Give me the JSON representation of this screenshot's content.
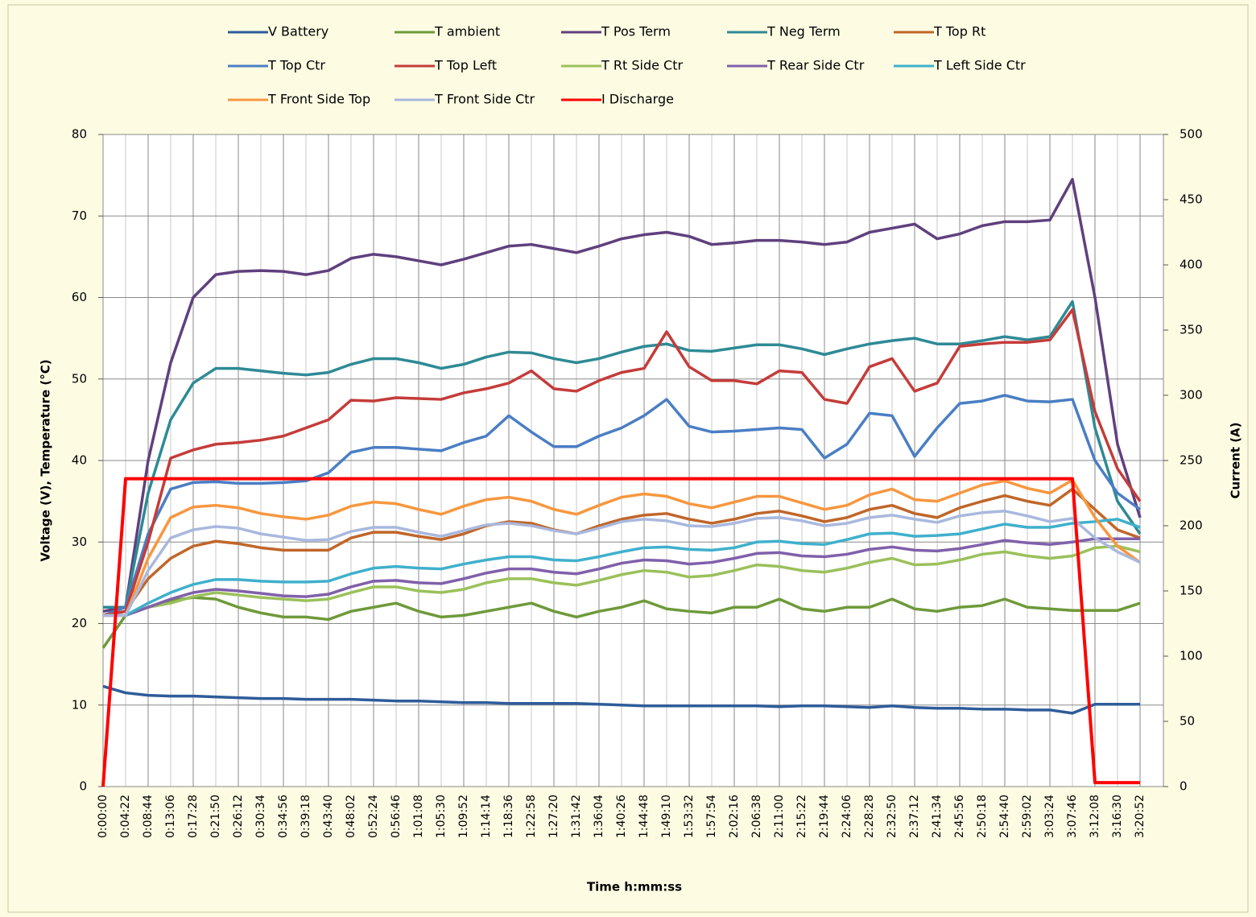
{
  "chart_data": {
    "type": "line",
    "x_label": "Time h:mm:ss",
    "y_label": "Voltage (V), Temperature (°C)",
    "y2_label": "Current (A)",
    "categories": [
      "0:00:00",
      "0:04:22",
      "0:08:44",
      "0:13:06",
      "0:17:28",
      "0:21:50",
      "0:26:12",
      "0:30:34",
      "0:34:56",
      "0:39:18",
      "0:43:40",
      "0:48:02",
      "0:52:24",
      "0:56:46",
      "1:01:08",
      "1:05:30",
      "1:09:52",
      "1:14:14",
      "1:18:36",
      "1:22:58",
      "1:27:20",
      "1:31:42",
      "1:36:04",
      "1:40:26",
      "1:44:48",
      "1:49:10",
      "1:53:32",
      "1:57:54",
      "2:02:16",
      "2:06:38",
      "2:11:00",
      "2:15:22",
      "2:19:44",
      "2:24:06",
      "2:28:28",
      "2:32:50",
      "2:37:12",
      "2:41:34",
      "2:45:56",
      "2:50:18",
      "2:54:40",
      "2:59:02",
      "3:03:24",
      "3:07:46",
      "3:12:08",
      "3:16:30",
      "3:20:52"
    ],
    "ylim": [
      0,
      80
    ],
    "yticks": [
      0,
      10,
      20,
      30,
      40,
      50,
      60,
      70,
      80
    ],
    "y2lim": [
      0,
      500
    ],
    "y2ticks": [
      0,
      50,
      100,
      150,
      200,
      250,
      300,
      350,
      400,
      450,
      500
    ],
    "grid": true,
    "legend": "top",
    "series": [
      {
        "name": "V Battery",
        "color": "#2e5c9a",
        "values": [
          12.3,
          11.5,
          11.2,
          11.1,
          11.1,
          11.0,
          10.9,
          10.8,
          10.8,
          10.7,
          10.7,
          10.7,
          10.6,
          10.5,
          10.5,
          10.4,
          10.3,
          10.3,
          10.2,
          10.2,
          10.2,
          10.2,
          10.1,
          10.0,
          9.9,
          9.9,
          9.9,
          9.9,
          9.9,
          9.9,
          9.8,
          9.9,
          9.9,
          9.8,
          9.7,
          9.9,
          9.7,
          9.6,
          9.6,
          9.5,
          9.5,
          9.4,
          9.4,
          9.0,
          10.1,
          10.1,
          10.1
        ]
      },
      {
        "name": "T ambient",
        "color": "#6e9a3a",
        "values": [
          17,
          21,
          22,
          22.8,
          23.2,
          23.0,
          22.0,
          21.3,
          20.8,
          20.8,
          20.5,
          21.5,
          22.0,
          22.5,
          21.5,
          20.8,
          21.0,
          21.5,
          22.0,
          22.5,
          21.5,
          20.8,
          21.5,
          22.0,
          22.8,
          21.8,
          21.5,
          21.3,
          22.0,
          22.0,
          23.0,
          21.8,
          21.5,
          22.0,
          22.0,
          23.0,
          21.8,
          21.5,
          22.0,
          22.2,
          23.0,
          22.0,
          21.8,
          21.6,
          21.6,
          21.6,
          22.5
        ]
      },
      {
        "name": "T Pos Term",
        "color": "#60407e",
        "values": [
          21.5,
          22,
          40,
          52,
          60,
          62.8,
          63.2,
          63.3,
          63.2,
          62.8,
          63.3,
          64.8,
          65.3,
          65.0,
          64.5,
          64.0,
          64.7,
          65.5,
          66.3,
          66.5,
          66.0,
          65.5,
          66.3,
          67.2,
          67.7,
          68.0,
          67.5,
          66.5,
          66.7,
          67.0,
          67.0,
          66.8,
          66.5,
          66.8,
          68.0,
          68.5,
          69.0,
          67.2,
          67.8,
          68.8,
          69.3,
          69.3,
          69.5,
          74.5,
          60,
          42,
          33
        ]
      },
      {
        "name": "T Neg Term",
        "color": "#2e8a95",
        "values": [
          22,
          22,
          36,
          45,
          49.5,
          51.3,
          51.3,
          51,
          50.7,
          50.5,
          50.8,
          51.8,
          52.5,
          52.5,
          52,
          51.3,
          51.8,
          52.7,
          53.3,
          53.2,
          52.5,
          52,
          52.5,
          53.3,
          54,
          54.3,
          53.5,
          53.4,
          53.8,
          54.2,
          54.2,
          53.7,
          53,
          53.7,
          54.3,
          54.7,
          55,
          54.3,
          54.3,
          54.7,
          55.2,
          54.8,
          55.2,
          59.5,
          44,
          35,
          31
        ]
      },
      {
        "name": "T Top Rt",
        "color": "#c0662a",
        "values": [
          21,
          21.5,
          25.5,
          28,
          29.5,
          30.1,
          29.8,
          29.3,
          29,
          29,
          29,
          30.5,
          31.2,
          31.2,
          30.7,
          30.3,
          31,
          32,
          32.5,
          32.3,
          31.5,
          31,
          32,
          32.8,
          33.3,
          33.5,
          32.8,
          32.3,
          32.8,
          33.5,
          33.8,
          33.2,
          32.5,
          33,
          34,
          34.5,
          33.5,
          33,
          34.2,
          35,
          35.7,
          35,
          34.5,
          36.5,
          34,
          31.5,
          30.5
        ]
      },
      {
        "name": "T Top Ctr",
        "color": "#4a7ec4",
        "values": [
          21,
          22,
          31,
          36.5,
          37.3,
          37.4,
          37.2,
          37.2,
          37.3,
          37.5,
          38.5,
          41,
          41.6,
          41.6,
          41.4,
          41.2,
          42.2,
          43,
          45.5,
          43.5,
          41.7,
          41.7,
          43,
          44,
          45.5,
          47.5,
          44.2,
          43.5,
          43.6,
          43.8,
          44,
          43.8,
          40.3,
          42,
          45.8,
          45.5,
          40.5,
          44,
          47,
          47.3,
          48,
          47.3,
          47.2,
          47.5,
          40,
          36,
          34
        ]
      },
      {
        "name": "T Top Left",
        "color": "#c43c3a",
        "values": [
          21,
          21.5,
          30,
          40.3,
          41.3,
          42,
          42.2,
          42.5,
          43,
          44,
          45,
          47.4,
          47.3,
          47.7,
          47.6,
          47.5,
          48.3,
          48.8,
          49.5,
          51,
          48.8,
          48.5,
          49.8,
          50.8,
          51.3,
          55.8,
          51.5,
          49.8,
          49.8,
          49.4,
          51.0,
          50.8,
          47.5,
          47,
          51.5,
          52.5,
          48.5,
          49.5,
          54,
          54.3,
          54.5,
          54.5,
          54.8,
          58.5,
          46,
          39,
          35
        ]
      },
      {
        "name": "T Rt Side Ctr",
        "color": "#9bc05a",
        "values": [
          21,
          21,
          22,
          22.5,
          23.3,
          23.8,
          23.5,
          23.2,
          23,
          22.8,
          23,
          23.8,
          24.5,
          24.5,
          24,
          23.8,
          24.2,
          25,
          25.5,
          25.5,
          25,
          24.7,
          25.3,
          26,
          26.5,
          26.3,
          25.7,
          25.9,
          26.5,
          27.2,
          27,
          26.5,
          26.3,
          26.8,
          27.5,
          28,
          27.2,
          27.3,
          27.8,
          28.5,
          28.8,
          28.3,
          28,
          28.3,
          29.3,
          29.5,
          28.8
        ]
      },
      {
        "name": "T Rear Side Ctr",
        "color": "#8060aa",
        "values": [
          21,
          21,
          22,
          23,
          23.8,
          24.2,
          24,
          23.7,
          23.4,
          23.3,
          23.6,
          24.5,
          25.2,
          25.3,
          25,
          24.9,
          25.5,
          26.2,
          26.7,
          26.7,
          26.3,
          26.1,
          26.7,
          27.4,
          27.8,
          27.7,
          27.3,
          27.5,
          28,
          28.6,
          28.7,
          28.3,
          28.2,
          28.5,
          29.1,
          29.4,
          29,
          28.9,
          29.2,
          29.7,
          30.2,
          29.9,
          29.7,
          30.0,
          30.4,
          30.4,
          30.4
        ]
      },
      {
        "name": "T Left Side Ctr",
        "color": "#3fb0cc",
        "values": [
          21,
          21,
          22.5,
          23.8,
          24.8,
          25.4,
          25.4,
          25.2,
          25.1,
          25.1,
          25.2,
          26.1,
          26.8,
          27,
          26.8,
          26.7,
          27.3,
          27.8,
          28.2,
          28.2,
          27.8,
          27.7,
          28.2,
          28.8,
          29.3,
          29.4,
          29.1,
          29,
          29.3,
          30,
          30.1,
          29.8,
          29.7,
          30.3,
          31,
          31.1,
          30.7,
          30.8,
          31,
          31.6,
          32.2,
          31.8,
          31.8,
          32.3,
          32.5,
          32.8,
          31.8
        ]
      },
      {
        "name": "T Front Side Top",
        "color": "#f7973f",
        "values": [
          21,
          21,
          28,
          33,
          34.3,
          34.5,
          34.2,
          33.5,
          33.1,
          32.8,
          33.3,
          34.4,
          34.9,
          34.7,
          34.0,
          33.4,
          34.4,
          35.2,
          35.5,
          35,
          34,
          33.4,
          34.5,
          35.5,
          35.9,
          35.6,
          34.7,
          34.2,
          34.9,
          35.6,
          35.6,
          34.8,
          34,
          34.5,
          35.8,
          36.5,
          35.2,
          35,
          36,
          37,
          37.5,
          36.6,
          36,
          37.6,
          33,
          29.5,
          27.5
        ]
      },
      {
        "name": "T Front Side Ctr",
        "color": "#a9b8de",
        "values": [
          21,
          21,
          26.5,
          30.5,
          31.5,
          31.9,
          31.7,
          31,
          30.6,
          30.2,
          30.3,
          31.3,
          31.8,
          31.8,
          31.2,
          30.7,
          31.4,
          32.1,
          32.3,
          32,
          31.4,
          31,
          31.7,
          32.5,
          32.8,
          32.6,
          32,
          31.9,
          32.3,
          32.9,
          33,
          32.6,
          32,
          32.3,
          33,
          33.3,
          32.8,
          32.4,
          33.2,
          33.6,
          33.8,
          33.2,
          32.5,
          32.9,
          30.5,
          28.8,
          27.5
        ]
      },
      {
        "name": "I Discharge",
        "color": "#ff0000",
        "axis": "y2",
        "values": [
          0,
          236,
          236,
          236,
          236,
          236,
          236,
          236,
          236,
          236,
          236,
          236,
          236,
          236,
          236,
          236,
          236,
          236,
          236,
          236,
          236,
          236,
          236,
          236,
          236,
          236,
          236,
          236,
          236,
          236,
          236,
          236,
          236,
          236,
          236,
          236,
          236,
          236,
          236,
          236,
          236,
          236,
          236,
          236,
          3,
          3,
          3
        ]
      }
    ]
  }
}
